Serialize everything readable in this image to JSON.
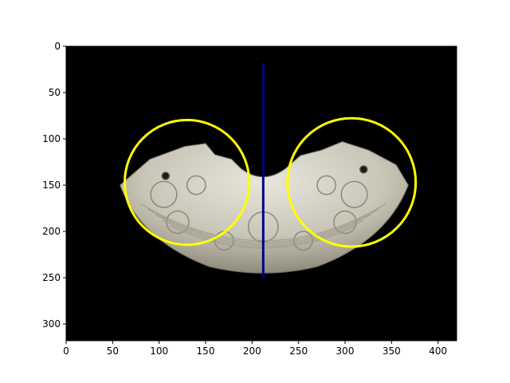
{
  "chart_data": {
    "type": "image",
    "title": "",
    "xlabel": "",
    "ylabel": "",
    "xlim": [
      0,
      420
    ],
    "ylim": [
      0,
      318
    ],
    "y_inverted": true,
    "x_ticks": [
      "0",
      "50",
      "100",
      "150",
      "200",
      "250",
      "300",
      "350",
      "400"
    ],
    "y_ticks": [
      "0",
      "50",
      "100",
      "150",
      "200",
      "250",
      "300"
    ],
    "background_image": "black photograph of a carved pale jade arc-shaped pendant (huang) with dragon heads at both ends",
    "overlays": {
      "circles": [
        {
          "name": "left-dragon-head",
          "cx": 130,
          "cy": 147,
          "r": 67,
          "color": "#ffff00"
        },
        {
          "name": "right-dragon-head",
          "cx": 307,
          "cy": 147,
          "r": 69,
          "color": "#ffff00"
        }
      ],
      "lines": [
        {
          "name": "symmetry-axis",
          "x": 212,
          "y_start": 18,
          "y_end": 250,
          "color": "#00008b"
        }
      ]
    }
  }
}
